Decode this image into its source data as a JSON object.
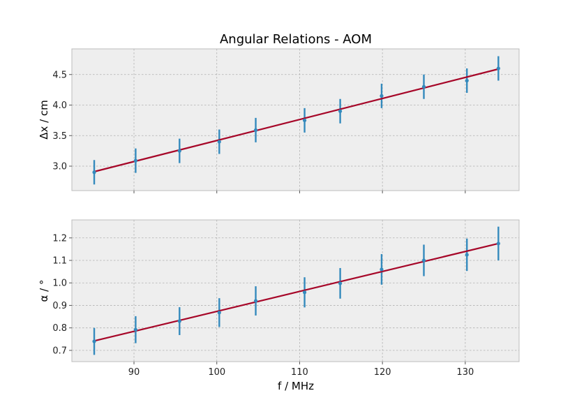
{
  "chart_data": {
    "type": "scatter",
    "title": "Angular Relations - AOM",
    "xlabel": "f / MHz",
    "xlim": [
      82.5,
      136.5
    ],
    "xticks": [
      90,
      100,
      110,
      120,
      130
    ],
    "grid": true,
    "colors": {
      "points": "#348abd",
      "fit": "#a60628",
      "panel": "#eeeeee"
    },
    "panels": [
      {
        "ylabel": "Δx / cm",
        "ylim": [
          2.6,
          4.92
        ],
        "yticks": [
          3.0,
          3.5,
          4.0,
          4.5
        ],
        "tick_decimals": 1,
        "points": [
          {
            "x": 85.2,
            "y": 2.9,
            "err": 0.2
          },
          {
            "x": 90.2,
            "y": 3.09,
            "err": 0.2
          },
          {
            "x": 95.5,
            "y": 3.25,
            "err": 0.2
          },
          {
            "x": 100.3,
            "y": 3.4,
            "err": 0.2
          },
          {
            "x": 104.7,
            "y": 3.59,
            "err": 0.2
          },
          {
            "x": 110.6,
            "y": 3.75,
            "err": 0.2
          },
          {
            "x": 114.9,
            "y": 3.9,
            "err": 0.2
          },
          {
            "x": 119.9,
            "y": 4.15,
            "err": 0.2
          },
          {
            "x": 125.0,
            "y": 4.3,
            "err": 0.2
          },
          {
            "x": 130.2,
            "y": 4.4,
            "err": 0.2
          },
          {
            "x": 134.0,
            "y": 4.6,
            "err": 0.2
          }
        ],
        "fit": [
          {
            "x": 85.2,
            "y": 2.91
          },
          {
            "x": 134.0,
            "y": 4.59
          }
        ]
      },
      {
        "ylabel": "α / °",
        "ylim": [
          0.65,
          1.28
        ],
        "yticks": [
          0.7,
          0.8,
          0.9,
          1.0,
          1.1,
          1.2
        ],
        "tick_decimals": 1,
        "points": [
          {
            "x": 85.2,
            "y": 0.74,
            "err": 0.06
          },
          {
            "x": 90.2,
            "y": 0.792,
            "err": 0.06
          },
          {
            "x": 95.5,
            "y": 0.83,
            "err": 0.062
          },
          {
            "x": 100.3,
            "y": 0.868,
            "err": 0.064
          },
          {
            "x": 104.7,
            "y": 0.92,
            "err": 0.065
          },
          {
            "x": 110.6,
            "y": 0.958,
            "err": 0.067
          },
          {
            "x": 114.9,
            "y": 0.998,
            "err": 0.068
          },
          {
            "x": 119.9,
            "y": 1.06,
            "err": 0.068
          },
          {
            "x": 125.0,
            "y": 1.1,
            "err": 0.07
          },
          {
            "x": 130.2,
            "y": 1.125,
            "err": 0.072
          },
          {
            "x": 134.0,
            "y": 1.175,
            "err": 0.075
          }
        ],
        "fit": [
          {
            "x": 85.2,
            "y": 0.742
          },
          {
            "x": 134.0,
            "y": 1.175
          }
        ]
      }
    ]
  }
}
